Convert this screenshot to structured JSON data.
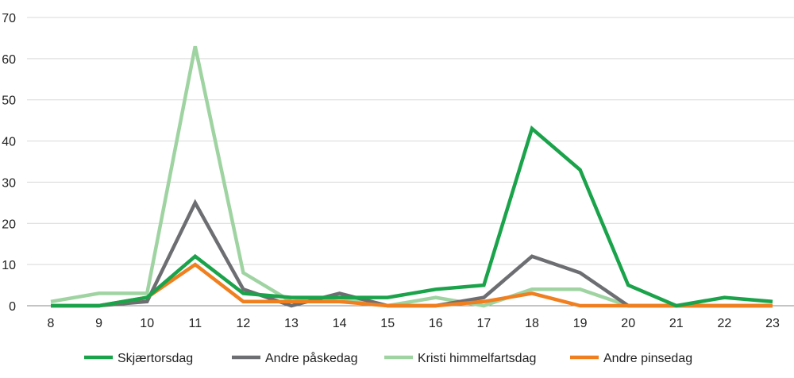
{
  "chart_data": {
    "type": "line",
    "x": [
      8,
      9,
      10,
      11,
      12,
      13,
      14,
      15,
      16,
      17,
      18,
      19,
      20,
      21,
      22,
      23
    ],
    "ylim": [
      0,
      70
    ],
    "yticks": [
      0,
      10,
      20,
      30,
      40,
      50,
      60,
      70
    ],
    "grid": true,
    "legend_position": "bottom",
    "series": [
      {
        "name": "Skjærtorsdag",
        "color": "#1aa34a",
        "values": [
          0,
          0,
          2,
          12,
          3,
          2,
          2,
          2,
          4,
          5,
          43,
          33,
          5,
          0,
          2,
          1
        ]
      },
      {
        "name": "Andre påskedag",
        "color": "#6d6e71",
        "values": [
          0,
          0,
          1,
          25,
          4,
          0,
          3,
          0,
          0,
          2,
          12,
          8,
          0,
          0,
          0,
          0
        ]
      },
      {
        "name": "Kristi himmelfartsdag",
        "color": "#9fd4a2",
        "values": [
          1,
          3,
          3,
          63,
          8,
          1,
          2,
          0,
          2,
          0,
          4,
          4,
          0,
          0,
          0,
          0
        ]
      },
      {
        "name": "Andre pinsedag",
        "color": "#f07f1f",
        "values": [
          0,
          0,
          2,
          10,
          1,
          1,
          1,
          0,
          0,
          1,
          3,
          0,
          0,
          0,
          0,
          0
        ]
      }
    ]
  }
}
